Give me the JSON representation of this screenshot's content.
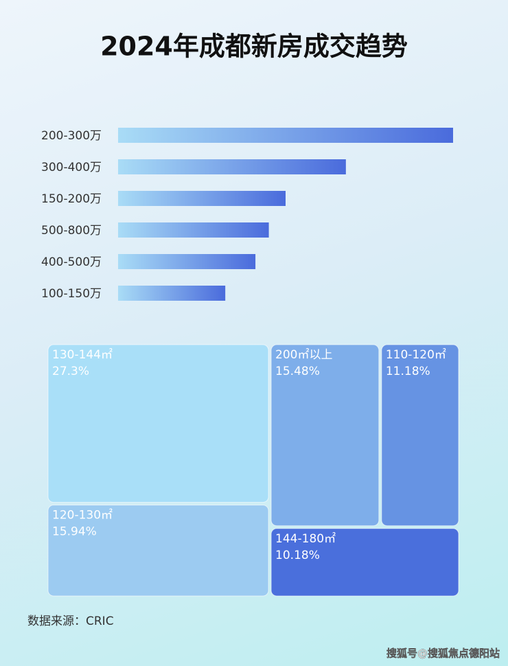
{
  "chart_data": [
    {
      "type": "bar",
      "orientation": "horizontal",
      "title": "2024年成都新房成交趋势",
      "categories": [
        "200-300万",
        "300-400万",
        "150-200万",
        "500-800万",
        "400-500万",
        "100-150万"
      ],
      "values": [
        100,
        68,
        50,
        45,
        41,
        32
      ],
      "xlim": [
        0,
        100
      ],
      "color": "#4a6bdc"
    },
    {
      "type": "treemap",
      "categories": [
        "130-144㎡",
        "120-130㎡",
        "200㎡以上",
        "110-120㎡",
        "144-180㎡"
      ],
      "values": [
        27.3,
        15.94,
        15.48,
        11.18,
        10.18
      ],
      "value_labels": [
        "27.3%",
        "15.94%",
        "15.48%",
        "11.18%",
        "10.18%"
      ],
      "colors": [
        "#a9dff8",
        "#9ccbf1",
        "#7eaeea",
        "#6693e3",
        "#4a6fdc"
      ]
    }
  ],
  "source": "数据来源：CRIC",
  "watermark": "搜狐号@搜狐焦点德阳站"
}
